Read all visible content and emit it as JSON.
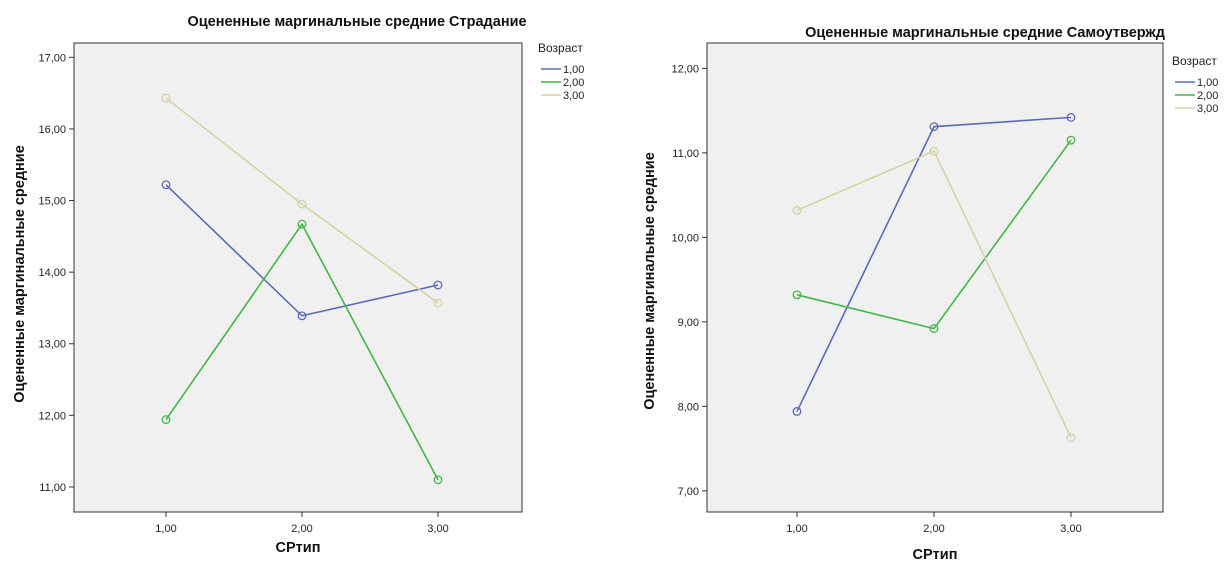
{
  "chart_data": [
    {
      "type": "line",
      "title": "Оцененные маргинальные средние Страдание",
      "xlabel": "СРтип",
      "ylabel": "Оцененные маргинальные средние",
      "categories": [
        "1,00",
        "2,00",
        "3,00"
      ],
      "ylim": [
        10.65,
        17.2
      ],
      "yticks": [
        "11,00",
        "12,00",
        "13,00",
        "14,00",
        "15,00",
        "16,00",
        "17,00"
      ],
      "ytick_values": [
        11,
        12,
        13,
        14,
        15,
        16,
        17
      ],
      "grid": false,
      "legend_title": "Возраст",
      "legend_position": "right",
      "series": [
        {
          "name": "1,00",
          "color": "#5b6bb5",
          "values": [
            15.22,
            13.39,
            13.82
          ]
        },
        {
          "name": "2,00",
          "color": "#43b649",
          "values": [
            11.94,
            14.67,
            11.1
          ]
        },
        {
          "name": "3,00",
          "color": "#d5d2a4",
          "values": [
            16.43,
            14.95,
            13.57
          ]
        }
      ]
    },
    {
      "type": "line",
      "title": "Оцененные маргинальные средние Самоутвержд",
      "xlabel": "СРтип",
      "ylabel": "Оцененные маргинальные средние",
      "categories": [
        "1,00",
        "2,00",
        "3,00"
      ],
      "ylim": [
        6.75,
        12.3
      ],
      "yticks": [
        "7,00",
        "8,00",
        "9,00",
        "10,00",
        "11,00",
        "12,00"
      ],
      "ytick_values": [
        7,
        8,
        9,
        10,
        11,
        12
      ],
      "grid": false,
      "legend_title": "Возраст",
      "legend_position": "right",
      "series": [
        {
          "name": "1,00",
          "color": "#5b6bb5",
          "values": [
            7.94,
            11.31,
            11.42
          ]
        },
        {
          "name": "2,00",
          "color": "#43b649",
          "values": [
            9.32,
            8.92,
            11.15
          ]
        },
        {
          "name": "3,00",
          "color": "#d5d2a4",
          "values": [
            10.32,
            11.02,
            7.63
          ]
        }
      ]
    }
  ]
}
